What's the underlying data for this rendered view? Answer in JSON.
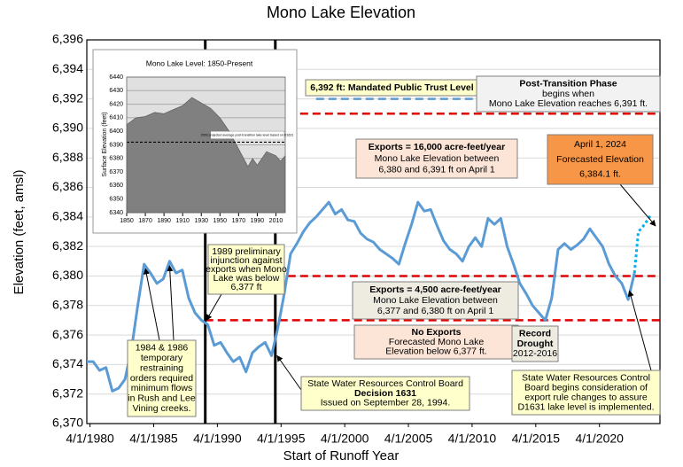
{
  "chart_data": [
    {
      "type": "line",
      "title": "Mono Lake Elevation",
      "x_label": "Start of Runoff Year",
      "y_label": "Elevation (feet, amsl)",
      "xlim": [
        1980,
        2025
      ],
      "ylim": [
        6370,
        6396
      ],
      "xticks": [
        {
          "value": 1980.25,
          "label": "4/1/1980"
        },
        {
          "value": 1985.25,
          "label": "4/1/1985"
        },
        {
          "value": 1990.25,
          "label": "4/1/1990"
        },
        {
          "value": 1995.25,
          "label": "4/1/1995"
        },
        {
          "value": 2000.25,
          "label": "4/1/2000"
        },
        {
          "value": 2005.25,
          "label": "4/1/2005"
        },
        {
          "value": 2010.25,
          "label": "4/1/2010"
        },
        {
          "value": 2015.25,
          "label": "4/1/2015"
        },
        {
          "value": 2020.25,
          "label": "4/1/2020"
        }
      ],
      "yticks": [
        {
          "value": 6370,
          "label": "6,370"
        },
        {
          "value": 6372,
          "label": "6,372"
        },
        {
          "value": 6374,
          "label": "6,374"
        },
        {
          "value": 6376,
          "label": "6,376"
        },
        {
          "value": 6378,
          "label": "6,378"
        },
        {
          "value": 6380,
          "label": "6,380"
        },
        {
          "value": 6382,
          "label": "6,382"
        },
        {
          "value": 6384,
          "label": "6,384"
        },
        {
          "value": 6386,
          "label": "6,386"
        },
        {
          "value": 6388,
          "label": "6,388"
        },
        {
          "value": 6390,
          "label": "6,390"
        },
        {
          "value": 6392,
          "label": "6,392"
        },
        {
          "value": 6394,
          "label": "6,394"
        },
        {
          "value": 6396,
          "label": "6,396"
        }
      ],
      "grid": true,
      "series": [
        {
          "color": "#5b9bd5",
          "style": "solid",
          "x": [
            1980,
            1980.5,
            1981,
            1981.5,
            1982,
            1982.5,
            1983,
            1983.5,
            1984,
            1984.5,
            1985,
            1985.5,
            1986,
            1986.5,
            1987,
            1987.5,
            1988,
            1988.5,
            1989,
            1989.5,
            1990,
            1990.5,
            1991,
            1991.5,
            1992,
            1992.5,
            1993,
            1993.5,
            1994,
            1994.5,
            1995,
            1995.5,
            1996,
            1996.5,
            1997,
            1997.5,
            1998,
            1998.5,
            1999,
            1999.5,
            2000,
            2000.5,
            2001,
            2001.5,
            2002,
            2002.5,
            2003,
            2003.5,
            2004,
            2004.5,
            2005,
            2005.5,
            2006,
            2006.5,
            2007,
            2007.5,
            2008,
            2008.5,
            2009,
            2009.5,
            2010,
            2010.5,
            2011,
            2011.5,
            2012,
            2012.5,
            2013,
            2013.5,
            2014,
            2014.5,
            2015,
            2015.5,
            2016,
            2016.5,
            2017,
            2017.5,
            2018,
            2018.5,
            2019,
            2019.5,
            2020,
            2020.5,
            2021,
            2021.5,
            2022,
            2022.5,
            2023
          ],
          "values": [
            6374.2,
            6374.2,
            6373.6,
            6373.8,
            6372.2,
            6372.4,
            6373,
            6375,
            6378,
            6380.8,
            6380.2,
            6379.5,
            6379.8,
            6381,
            6380.2,
            6380.4,
            6378.5,
            6377.5,
            6377,
            6376.7,
            6375.3,
            6375.5,
            6374.8,
            6374.2,
            6374.5,
            6373.5,
            6374.8,
            6375.2,
            6375.5,
            6374.6,
            6376.5,
            6378.8,
            6381.5,
            6382.2,
            6383,
            6383.6,
            6384,
            6384.5,
            6385,
            6384.2,
            6384.5,
            6383.8,
            6383.7,
            6382.9,
            6382.5,
            6382.3,
            6381.8,
            6381.5,
            6381.2,
            6380.8,
            6382.2,
            6383.5,
            6385,
            6384.4,
            6384.5,
            6383.4,
            6382.4,
            6381.8,
            6381.5,
            6381,
            6382,
            6382.6,
            6382,
            6383.9,
            6383.5,
            6383.9,
            6382,
            6380.8,
            6379.5,
            6378.8,
            6378,
            6377.5,
            6377,
            6378.5,
            6381.8,
            6382.2,
            6381.8,
            6382.1,
            6382.5,
            6383.2,
            6382.6,
            6382,
            6380.8,
            6380,
            6379.5,
            6378.4,
            6380.2
          ]
        },
        {
          "color": "#00b0f0",
          "style": "dotted",
          "x": [
            2023,
            2023.3,
            2023.8,
            2024.25
          ],
          "values": [
            6380.2,
            6383,
            6383.5,
            6384.1
          ]
        }
      ],
      "reference_lines": [
        {
          "y": 6392,
          "from": 1998,
          "color": "#5b9bd5"
        },
        {
          "y": 6391,
          "from": 1994.8,
          "color": "#e00000"
        },
        {
          "y": 6380,
          "from": 1994.8,
          "color": "#e00000"
        },
        {
          "y": 6377,
          "from": 1989.3,
          "color": "#e00000"
        }
      ],
      "vertical_lines": [
        1989.3,
        1994.8
      ],
      "annotations": [
        {
          "fill": "#ffffcc",
          "lines": [
            {
              "text": "6,392 ft: Mandated Public Trust Level",
              "bold": true
            }
          ]
        },
        {
          "fill": "#f2f2f2",
          "lines": [
            {
              "text": "Post-Transition Phase",
              "bold": true
            },
            "begins when",
            "Mono Lake Elevation reaches 6,391 ft."
          ]
        },
        {
          "fill": "#fce4d6",
          "lines": [
            {
              "text": "Exports = 16,000 acre-feet/year",
              "bold": true
            },
            "Mono Lake Elevation between",
            "6,380 and 6,391 ft on April 1"
          ]
        },
        {
          "fill": "#f79646",
          "lines": [
            "April 1, 2024",
            "Forecasted Elevation",
            "6,384.1 ft."
          ]
        },
        {
          "fill": "#eeece1",
          "lines": [
            {
              "text": "Exports = 4,500 acre-feet/year",
              "bold": true
            },
            "Mono Lake Elevation between",
            "6,377 and 6,380 ft on April 1"
          ]
        },
        {
          "fill": "#fce4d6",
          "lines": [
            {
              "text": "No Exports",
              "bold": true
            },
            "Forecasted Mono Lake",
            "Elevation below 6,377 ft."
          ]
        },
        {
          "fill": "#eeece1",
          "lines": [
            {
              "text": "Record",
              "bold": true
            },
            {
              "text": "Drought",
              "bold": true
            },
            "2012-2016"
          ]
        },
        {
          "fill": "#ffffcc",
          "lines": [
            "1989 preliminary",
            "injunction against",
            "exports when Mono",
            "Lake was below",
            "6,377 ft"
          ]
        },
        {
          "fill": "#ffffcc",
          "lines": [
            "1984 & 1986",
            "temporary",
            "restraining",
            "orders required",
            "minimum flows",
            "in Rush and Lee",
            "Vining creeks."
          ]
        },
        {
          "fill": "#ffffcc",
          "lines": [
            "State Water Resources Control Board",
            {
              "text": "Decision 1631",
              "bold": true
            },
            "Issued on September 28, 1994."
          ]
        },
        {
          "fill": "#ffffcc",
          "lines": [
            "State Water Resources Control",
            "Board begins consideration of",
            "export rule changes to assure",
            "D1631 lake level is implemented."
          ]
        }
      ]
    },
    {
      "type": "area",
      "title": "Mono Lake Level: 1850-Present",
      "y_label": "Surface Elevation (feet)",
      "color": "#808080",
      "x": [
        1850,
        1860,
        1870,
        1880,
        1890,
        1900,
        1910,
        1920,
        1930,
        1940,
        1950,
        1960,
        1970,
        1980,
        1985,
        1990,
        2000,
        2010,
        2015,
        2020
      ],
      "values": [
        6405,
        6410,
        6411,
        6414,
        6413,
        6416,
        6419,
        6425,
        6421,
        6417,
        6410,
        6400,
        6387,
        6374,
        6380,
        6375,
        6385,
        6382,
        6378,
        6382
      ],
      "xlim": [
        1850,
        2020
      ],
      "ylim": [
        6340,
        6440
      ],
      "xticks": [
        1850,
        1870,
        1890,
        1910,
        1930,
        1950,
        1970,
        1990,
        2010
      ],
      "yticks": [
        6340,
        6350,
        6360,
        6370,
        6380,
        6390,
        6400,
        6410,
        6420,
        6430,
        6440
      ],
      "reference_line": 6392,
      "annotation": "2003 projected average post-transition lake level based on D1631"
    }
  ]
}
